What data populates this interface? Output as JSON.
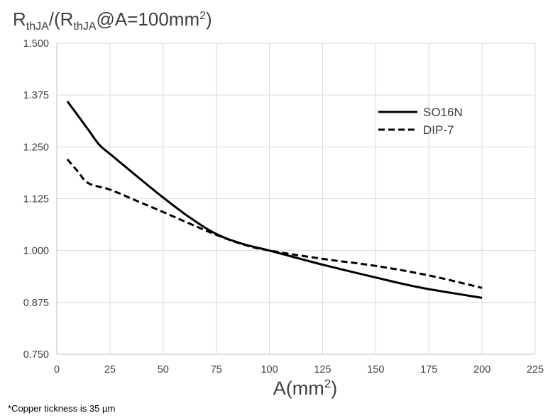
{
  "chart_data": {
    "type": "line",
    "ylabel_parts": {
      "r1": "R",
      "sub1": "thJA",
      "mid": "/(R",
      "sub2": "thJA",
      "tail": "@A=100mm",
      "sup": "2",
      "close": ")"
    },
    "xlabel_parts": {
      "base": "A(mm",
      "sup": "2",
      "close": ")"
    },
    "xlim": [
      0,
      225
    ],
    "ylim": [
      0.75,
      1.5
    ],
    "x_ticks": [
      "0",
      "25",
      "50",
      "75",
      "100",
      "125",
      "150",
      "175",
      "200",
      "225"
    ],
    "x_tick_values": [
      0,
      25,
      50,
      75,
      100,
      125,
      150,
      175,
      200,
      225
    ],
    "y_ticks": [
      "0.750",
      "0.875",
      "1.000",
      "1.125",
      "1.250",
      "1.375",
      "1.500"
    ],
    "y_tick_values": [
      0.75,
      0.875,
      1.0,
      1.125,
      1.25,
      1.375,
      1.5
    ],
    "grid": {
      "x": true,
      "y": true
    },
    "legend_position": "top-right",
    "series": [
      {
        "name": "SO16N",
        "style": "solid",
        "color": "#000000",
        "points": [
          [
            5,
            1.36
          ],
          [
            10,
            1.325
          ],
          [
            15,
            1.29
          ],
          [
            20,
            1.255
          ],
          [
            25,
            1.233
          ],
          [
            37.5,
            1.18
          ],
          [
            50,
            1.128
          ],
          [
            62.5,
            1.08
          ],
          [
            75,
            1.04
          ],
          [
            87.5,
            1.016
          ],
          [
            100,
            1.0
          ],
          [
            125,
            0.966
          ],
          [
            150,
            0.935
          ],
          [
            162.5,
            0.92
          ],
          [
            175,
            0.907
          ],
          [
            200,
            0.886
          ]
        ]
      },
      {
        "name": "DIP-7",
        "style": "dashed",
        "color": "#000000",
        "points": [
          [
            5,
            1.22
          ],
          [
            10,
            1.19
          ],
          [
            15,
            1.162
          ],
          [
            25,
            1.147
          ],
          [
            37.5,
            1.12
          ],
          [
            50,
            1.093
          ],
          [
            62.5,
            1.065
          ],
          [
            75,
            1.038
          ],
          [
            87.5,
            1.015
          ],
          [
            100,
            1.0
          ],
          [
            125,
            0.98
          ],
          [
            150,
            0.963
          ],
          [
            175,
            0.94
          ],
          [
            200,
            0.91
          ]
        ]
      }
    ]
  },
  "footnote": "*Copper tickness is 35 µm"
}
